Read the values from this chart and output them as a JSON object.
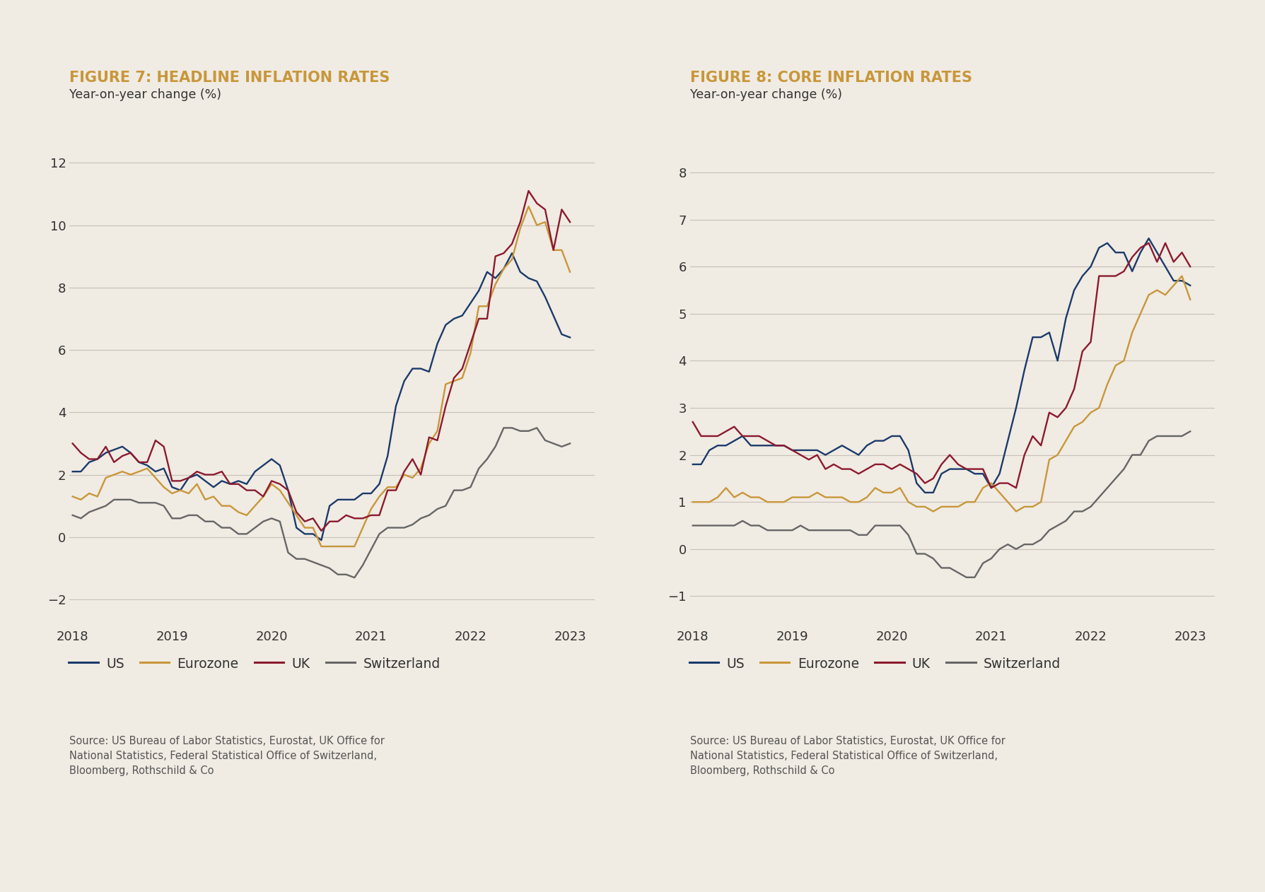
{
  "fig7_title": "FIGURE 7: HEADLINE INFLATION RATES",
  "fig8_title": "FIGURE 8: CORE INFLATION RATES",
  "subtitle": "Year-on-year change (%)",
  "source_text": "Source: US Bureau of Labor Statistics, Eurostat, UK Office for\nNational Statistics, Federal Statistical Office of Switzerland,\nBloomberg, Rothschild & Co",
  "background_color": "#f0ebe3",
  "title_color": "#c8973a",
  "subtitle_color": "#333333",
  "source_color": "#555555",
  "colors": {
    "US": "#1a3a6b",
    "Eurozone": "#c8973a",
    "UK": "#8b1a2e",
    "Switzerland": "#666666"
  },
  "fig7_ylim": [
    -2.8,
    13.5
  ],
  "fig7_yticks": [
    -2,
    0,
    2,
    4,
    6,
    8,
    10,
    12
  ],
  "fig8_ylim": [
    -1.6,
    9.2
  ],
  "fig8_yticks": [
    -1,
    0,
    1,
    2,
    3,
    4,
    5,
    6,
    7,
    8
  ],
  "fig7": {
    "US": [
      2.1,
      2.1,
      2.4,
      2.5,
      2.7,
      2.8,
      2.9,
      2.7,
      2.4,
      2.3,
      2.1,
      2.2,
      1.6,
      1.5,
      1.9,
      2.0,
      1.8,
      1.6,
      1.8,
      1.7,
      1.8,
      1.7,
      2.1,
      2.3,
      2.5,
      2.3,
      1.5,
      0.3,
      0.1,
      0.1,
      -0.1,
      1.0,
      1.2,
      1.2,
      1.2,
      1.4,
      1.4,
      1.7,
      2.6,
      4.2,
      5.0,
      5.4,
      5.4,
      5.3,
      6.2,
      6.8,
      7.0,
      7.1,
      7.5,
      7.9,
      8.5,
      8.3,
      8.6,
      9.1,
      8.5,
      8.3,
      8.2,
      7.7,
      7.1,
      6.5,
      6.4
    ],
    "Eurozone": [
      1.3,
      1.2,
      1.4,
      1.3,
      1.9,
      2.0,
      2.1,
      2.0,
      2.1,
      2.2,
      1.9,
      1.6,
      1.4,
      1.5,
      1.4,
      1.7,
      1.2,
      1.3,
      1.0,
      1.0,
      0.8,
      0.7,
      1.0,
      1.3,
      1.7,
      1.5,
      1.1,
      0.7,
      0.3,
      0.3,
      -0.3,
      -0.3,
      -0.3,
      -0.3,
      -0.3,
      0.3,
      0.9,
      1.3,
      1.6,
      1.6,
      2.0,
      1.9,
      2.2,
      3.0,
      3.4,
      4.9,
      5.0,
      5.1,
      5.9,
      7.4,
      7.4,
      8.1,
      8.6,
      8.9,
      9.9,
      10.6,
      10.0,
      10.1,
      9.2,
      9.2,
      8.5
    ],
    "UK": [
      3.0,
      2.7,
      2.5,
      2.5,
      2.9,
      2.4,
      2.6,
      2.7,
      2.4,
      2.4,
      3.1,
      2.9,
      1.8,
      1.8,
      1.9,
      2.1,
      2.0,
      2.0,
      2.1,
      1.7,
      1.7,
      1.5,
      1.5,
      1.3,
      1.8,
      1.7,
      1.5,
      0.8,
      0.5,
      0.6,
      0.2,
      0.5,
      0.5,
      0.7,
      0.6,
      0.6,
      0.7,
      0.7,
      1.5,
      1.5,
      2.1,
      2.5,
      2.0,
      3.2,
      3.1,
      4.2,
      5.1,
      5.4,
      6.2,
      7.0,
      7.0,
      9.0,
      9.1,
      9.4,
      10.1,
      11.1,
      10.7,
      10.5,
      9.2,
      10.5,
      10.1
    ],
    "Switzerland": [
      0.7,
      0.6,
      0.8,
      0.9,
      1.0,
      1.2,
      1.2,
      1.2,
      1.1,
      1.1,
      1.1,
      1.0,
      0.6,
      0.6,
      0.7,
      0.7,
      0.5,
      0.5,
      0.3,
      0.3,
      0.1,
      0.1,
      0.3,
      0.5,
      0.6,
      0.5,
      -0.5,
      -0.7,
      -0.7,
      -0.8,
      -0.9,
      -1.0,
      -1.2,
      -1.2,
      -1.3,
      -0.9,
      -0.4,
      0.1,
      0.3,
      0.3,
      0.3,
      0.4,
      0.6,
      0.7,
      0.9,
      1.0,
      1.5,
      1.5,
      1.6,
      2.2,
      2.5,
      2.9,
      3.5,
      3.5,
      3.4,
      3.4,
      3.5,
      3.1,
      3.0,
      2.9,
      3.0
    ]
  },
  "fig8": {
    "US": [
      1.8,
      1.8,
      2.1,
      2.2,
      2.2,
      2.3,
      2.4,
      2.2,
      2.2,
      2.2,
      2.2,
      2.2,
      2.1,
      2.1,
      2.1,
      2.1,
      2.0,
      2.1,
      2.2,
      2.1,
      2.0,
      2.2,
      2.3,
      2.3,
      2.4,
      2.4,
      2.1,
      1.4,
      1.2,
      1.2,
      1.6,
      1.7,
      1.7,
      1.7,
      1.6,
      1.6,
      1.3,
      1.6,
      2.3,
      3.0,
      3.8,
      4.5,
      4.5,
      4.6,
      4.0,
      4.9,
      5.5,
      5.8,
      6.0,
      6.4,
      6.5,
      6.3,
      6.3,
      5.9,
      6.3,
      6.6,
      6.3,
      6.0,
      5.7,
      5.7,
      5.6
    ],
    "Eurozone": [
      1.0,
      1.0,
      1.0,
      1.1,
      1.3,
      1.1,
      1.2,
      1.1,
      1.1,
      1.0,
      1.0,
      1.0,
      1.1,
      1.1,
      1.1,
      1.2,
      1.1,
      1.1,
      1.1,
      1.0,
      1.0,
      1.1,
      1.3,
      1.2,
      1.2,
      1.3,
      1.0,
      0.9,
      0.9,
      0.8,
      0.9,
      0.9,
      0.9,
      1.0,
      1.0,
      1.3,
      1.4,
      1.2,
      1.0,
      0.8,
      0.9,
      0.9,
      1.0,
      1.9,
      2.0,
      2.3,
      2.6,
      2.7,
      2.9,
      3.0,
      3.5,
      3.9,
      4.0,
      4.6,
      5.0,
      5.4,
      5.5,
      5.4,
      5.6,
      5.8,
      5.3
    ],
    "UK": [
      2.7,
      2.4,
      2.4,
      2.4,
      2.5,
      2.6,
      2.4,
      2.4,
      2.4,
      2.3,
      2.2,
      2.2,
      2.1,
      2.0,
      1.9,
      2.0,
      1.7,
      1.8,
      1.7,
      1.7,
      1.6,
      1.7,
      1.8,
      1.8,
      1.7,
      1.8,
      1.7,
      1.6,
      1.4,
      1.5,
      1.8,
      2.0,
      1.8,
      1.7,
      1.7,
      1.7,
      1.3,
      1.4,
      1.4,
      1.3,
      2.0,
      2.4,
      2.2,
      2.9,
      2.8,
      3.0,
      3.4,
      4.2,
      4.4,
      5.8,
      5.8,
      5.8,
      5.9,
      6.2,
      6.4,
      6.5,
      6.1,
      6.5,
      6.1,
      6.3,
      6.0
    ],
    "Switzerland": [
      0.5,
      0.5,
      0.5,
      0.5,
      0.5,
      0.5,
      0.6,
      0.5,
      0.5,
      0.4,
      0.4,
      0.4,
      0.4,
      0.5,
      0.4,
      0.4,
      0.4,
      0.4,
      0.4,
      0.4,
      0.3,
      0.3,
      0.5,
      0.5,
      0.5,
      0.5,
      0.3,
      -0.1,
      -0.1,
      -0.2,
      -0.4,
      -0.4,
      -0.5,
      -0.6,
      -0.6,
      -0.3,
      -0.2,
      0.0,
      0.1,
      0.0,
      0.1,
      0.1,
      0.2,
      0.4,
      0.5,
      0.6,
      0.8,
      0.8,
      0.9,
      1.1,
      1.3,
      1.5,
      1.7,
      2.0,
      2.0,
      2.3,
      2.4,
      2.4,
      2.4,
      2.4,
      2.5
    ]
  },
  "n_months": 61,
  "start_year": 2018,
  "xtick_years": [
    2018,
    2019,
    2020,
    2021,
    2022,
    2023
  ]
}
